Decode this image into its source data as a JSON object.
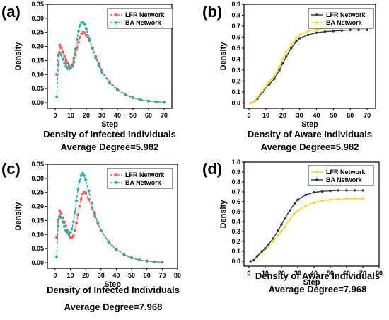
{
  "colors": {
    "lfr_red": "#ff5a5a",
    "ba_teal": "#16b3a6",
    "lfr_dark": "#203a3a",
    "ba_yellow": "#ffd21e"
  },
  "chart_data": [
    {
      "panel": "(a)",
      "type": "line",
      "xlabel": "Step",
      "ylabel": "Density",
      "caption_line1": "Density of Infected Individuals",
      "caption_line2": "Average Degree=5.982",
      "xlim": [
        -5,
        75
      ],
      "ylim": [
        -0.02,
        0.35
      ],
      "xticks": [
        0,
        10,
        20,
        30,
        40,
        50,
        60,
        70
      ],
      "yticks": [
        0.0,
        0.05,
        0.1,
        0.15,
        0.2,
        0.25,
        0.3,
        0.35
      ],
      "ytick_labels": [
        "0.00",
        "0.05",
        "0.10",
        "0.15",
        "0.20",
        "0.25",
        "0.30",
        "0.35"
      ],
      "legend": "top-right",
      "series": [
        {
          "name": "LFR Network",
          "color": "#ff5a5a",
          "marker": "square",
          "dash": true,
          "x": [
            1,
            2,
            3,
            4,
            5,
            6,
            7,
            8,
            9,
            10,
            11,
            12,
            13,
            14,
            15,
            16,
            17,
            18,
            19,
            20,
            22,
            24,
            26,
            28,
            30,
            35,
            40,
            45,
            50,
            55,
            60,
            65,
            70
          ],
          "y": [
            0.1,
            0.17,
            0.205,
            0.195,
            0.18,
            0.165,
            0.15,
            0.14,
            0.13,
            0.125,
            0.13,
            0.145,
            0.17,
            0.195,
            0.215,
            0.232,
            0.245,
            0.25,
            0.248,
            0.24,
            0.22,
            0.195,
            0.165,
            0.14,
            0.115,
            0.075,
            0.048,
            0.03,
            0.018,
            0.01,
            0.006,
            0.003,
            0.002
          ]
        },
        {
          "name": "BA Network",
          "color": "#16b3a6",
          "marker": "diamond",
          "dash": true,
          "x": [
            1,
            2,
            3,
            4,
            5,
            6,
            7,
            8,
            9,
            10,
            11,
            12,
            13,
            14,
            15,
            16,
            17,
            18,
            19,
            20,
            22,
            24,
            26,
            28,
            30,
            35,
            40,
            45,
            50,
            55,
            60,
            65,
            70
          ],
          "y": [
            0.02,
            0.135,
            0.178,
            0.17,
            0.155,
            0.14,
            0.13,
            0.122,
            0.12,
            0.123,
            0.135,
            0.158,
            0.19,
            0.225,
            0.255,
            0.275,
            0.285,
            0.285,
            0.278,
            0.262,
            0.228,
            0.192,
            0.16,
            0.132,
            0.108,
            0.07,
            0.045,
            0.028,
            0.017,
            0.01,
            0.006,
            0.003,
            0.002
          ]
        }
      ]
    },
    {
      "panel": "(b)",
      "type": "line",
      "xlabel": "Step",
      "ylabel": "Density",
      "caption_line1": "Density of Aware Individuals",
      "caption_line2": "Average Degree=5.982",
      "xlim": [
        -3,
        75
      ],
      "ylim": [
        -0.05,
        0.9
      ],
      "xticks": [
        0,
        10,
        20,
        30,
        40,
        50,
        60,
        70
      ],
      "yticks": [
        0.0,
        0.1,
        0.2,
        0.3,
        0.4,
        0.5,
        0.6,
        0.7,
        0.8,
        0.9
      ],
      "ytick_labels": [
        "0.0",
        "0.1",
        "0.2",
        "0.3",
        "0.4",
        "0.5",
        "0.6",
        "0.7",
        "0.8",
        "0.9"
      ],
      "legend": "top-right",
      "series": [
        {
          "name": "LFR Network",
          "color": "#203a3a",
          "marker": "dot",
          "dash": false,
          "x": [
            1,
            3,
            5,
            8,
            10,
            12,
            15,
            18,
            20,
            22,
            25,
            28,
            30,
            35,
            40,
            45,
            50,
            55,
            60,
            65,
            70
          ],
          "y": [
            0.0,
            0.01,
            0.04,
            0.1,
            0.14,
            0.17,
            0.22,
            0.3,
            0.36,
            0.42,
            0.5,
            0.56,
            0.59,
            0.62,
            0.64,
            0.65,
            0.655,
            0.66,
            0.665,
            0.665,
            0.665
          ]
        },
        {
          "name": "BA Network",
          "color": "#ffd21e",
          "marker": "dot",
          "dash": false,
          "x": [
            1,
            3,
            5,
            8,
            10,
            12,
            15,
            18,
            20,
            22,
            25,
            28,
            30,
            35,
            40,
            45,
            50,
            55,
            60,
            65,
            70
          ],
          "y": [
            0.0,
            0.01,
            0.05,
            0.11,
            0.15,
            0.19,
            0.25,
            0.33,
            0.4,
            0.46,
            0.53,
            0.59,
            0.62,
            0.655,
            0.67,
            0.68,
            0.685,
            0.69,
            0.69,
            0.69,
            0.69
          ]
        }
      ]
    },
    {
      "panel": "(c)",
      "type": "line",
      "xlabel": "Step",
      "ylabel": "Density",
      "caption_line1": "Density of Infected Individuals",
      "caption_line2": "Average Degree=7.968",
      "xlim": [
        -5,
        80
      ],
      "ylim": [
        -0.02,
        0.35
      ],
      "xticks": [
        0,
        10,
        20,
        30,
        40,
        50,
        60,
        70,
        80
      ],
      "yticks": [
        0.0,
        0.05,
        0.1,
        0.15,
        0.2,
        0.25,
        0.3,
        0.35
      ],
      "ytick_labels": [
        "0.00",
        "0.05",
        "0.10",
        "0.15",
        "0.20",
        "0.25",
        "0.30",
        "0.35"
      ],
      "legend": "top-right",
      "series": [
        {
          "name": "LFR Network",
          "color": "#ff5a5a",
          "marker": "square",
          "dash": true,
          "x": [
            1,
            2,
            3,
            4,
            5,
            6,
            7,
            8,
            9,
            10,
            11,
            12,
            13,
            14,
            15,
            16,
            17,
            18,
            19,
            20,
            22,
            24,
            26,
            28,
            30,
            35,
            40,
            45,
            50,
            55,
            60,
            65,
            70
          ],
          "y": [
            0.09,
            0.15,
            0.185,
            0.175,
            0.16,
            0.145,
            0.13,
            0.115,
            0.1,
            0.09,
            0.088,
            0.095,
            0.115,
            0.14,
            0.17,
            0.2,
            0.225,
            0.245,
            0.25,
            0.248,
            0.225,
            0.195,
            0.165,
            0.14,
            0.115,
            0.075,
            0.048,
            0.03,
            0.018,
            0.01,
            0.006,
            0.003,
            0.002
          ]
        },
        {
          "name": "BA Network",
          "color": "#16b3a6",
          "marker": "diamond",
          "dash": true,
          "x": [
            1,
            2,
            3,
            4,
            5,
            6,
            7,
            8,
            9,
            10,
            11,
            12,
            13,
            14,
            15,
            16,
            17,
            18,
            19,
            20,
            22,
            24,
            26,
            28,
            30,
            35,
            40,
            45,
            50,
            55,
            60,
            65,
            70
          ],
          "y": [
            0.02,
            0.13,
            0.165,
            0.16,
            0.145,
            0.128,
            0.115,
            0.108,
            0.105,
            0.108,
            0.12,
            0.145,
            0.18,
            0.22,
            0.26,
            0.29,
            0.31,
            0.318,
            0.31,
            0.295,
            0.255,
            0.212,
            0.175,
            0.142,
            0.115,
            0.072,
            0.045,
            0.028,
            0.017,
            0.01,
            0.006,
            0.003,
            0.002
          ]
        }
      ]
    },
    {
      "panel": "(d)",
      "type": "line",
      "xlabel": "Step",
      "ylabel": "Density",
      "caption_line1": "Density of Aware Individuals",
      "caption_line2": "Average Degree=7.968",
      "xlim": [
        -3,
        80
      ],
      "ylim": [
        -0.05,
        1.0
      ],
      "xticks": [
        0,
        10,
        20,
        30,
        40,
        50,
        60,
        70,
        80
      ],
      "yticks": [
        0.0,
        0.1,
        0.2,
        0.3,
        0.4,
        0.5,
        0.6,
        0.7,
        0.8,
        0.9,
        1.0
      ],
      "ytick_labels": [
        "0.0",
        "0.1",
        "0.2",
        "0.3",
        "0.4",
        "0.5",
        "0.6",
        "0.7",
        "0.8",
        "0.9",
        "1.0"
      ],
      "legend": "top-right",
      "series": [
        {
          "name": "LFR Network",
          "color": "#ffd21e",
          "marker": "dot",
          "dash": false,
          "x": [
            1,
            3,
            5,
            8,
            10,
            12,
            15,
            18,
            20,
            22,
            25,
            28,
            30,
            35,
            40,
            45,
            50,
            55,
            60,
            65,
            70
          ],
          "y": [
            0.0,
            0.01,
            0.04,
            0.09,
            0.12,
            0.15,
            0.2,
            0.26,
            0.3,
            0.35,
            0.42,
            0.48,
            0.51,
            0.56,
            0.59,
            0.61,
            0.62,
            0.625,
            0.63,
            0.63,
            0.63
          ]
        },
        {
          "name": "BA Network",
          "color": "#203a3a",
          "marker": "dot",
          "dash": false,
          "x": [
            1,
            3,
            5,
            8,
            10,
            12,
            15,
            18,
            20,
            22,
            25,
            28,
            30,
            35,
            40,
            45,
            50,
            55,
            60,
            65,
            70
          ],
          "y": [
            0.0,
            0.01,
            0.05,
            0.1,
            0.13,
            0.17,
            0.23,
            0.31,
            0.37,
            0.43,
            0.51,
            0.58,
            0.62,
            0.67,
            0.695,
            0.705,
            0.71,
            0.715,
            0.715,
            0.715,
            0.715
          ]
        }
      ]
    }
  ]
}
